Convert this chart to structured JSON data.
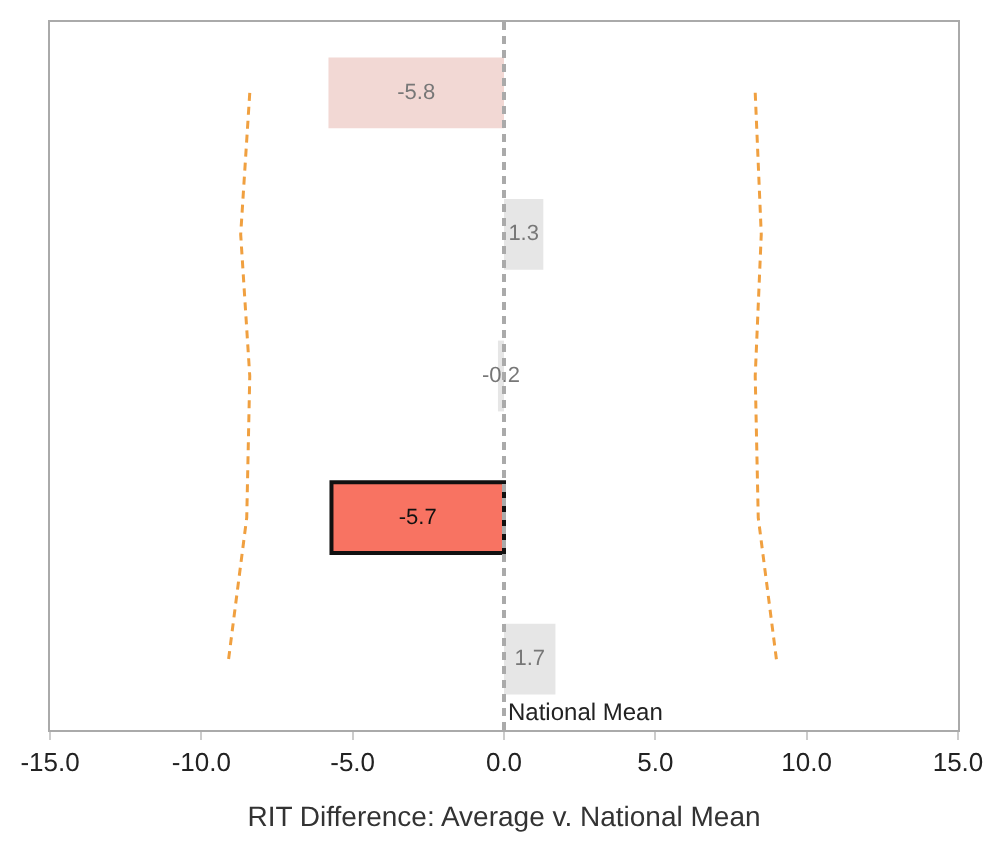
{
  "chart_data": {
    "type": "bar",
    "orientation": "horizontal",
    "xlabel": "RIT Difference: Average v. National Mean",
    "categories": [
      null,
      null,
      null,
      null,
      null
    ],
    "series": [
      {
        "colors": [
          "#f2d8d4",
          "#e6e6e6",
          "#e6e6e6",
          "#f87362",
          "#e6e6e6"
        ],
        "values": [
          -5.8,
          1.3,
          -0.2,
          -5.7,
          1.7
        ],
        "value_labels": [
          "-5.8",
          "1.3",
          "-0.2",
          "-5.7",
          "1.7"
        ]
      },
      {
        "type": "line",
        "color": "#f0a040",
        "line_style": "dashed",
        "values": [
          -8.4,
          -8.7,
          -8.4,
          -8.5,
          -9.1
        ]
      },
      {
        "type": "line",
        "color": "#f0a040",
        "line_style": "dashed",
        "values": [
          8.3,
          8.5,
          8.3,
          8.4,
          9.0
        ]
      }
    ],
    "xlim": [
      -15,
      15
    ],
    "xticks": [
      {
        "value": -15,
        "label": "-15.0"
      },
      {
        "value": -10,
        "label": "-10.0"
      },
      {
        "value": -5,
        "label": "-5.0"
      },
      {
        "value": 0,
        "label": "0.0"
      },
      {
        "value": 5,
        "label": "5.0"
      },
      {
        "value": 10,
        "label": "10.0"
      },
      {
        "value": 15,
        "label": "15.0"
      }
    ],
    "tick_labels": "x",
    "grid": false,
    "ref_lines": [
      {
        "axis": "x",
        "value": 0,
        "label": "National Mean",
        "color": "#aaaaaa",
        "line_style": "dashed"
      }
    ]
  }
}
